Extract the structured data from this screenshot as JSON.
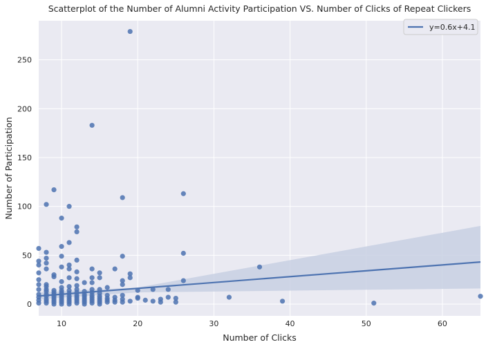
{
  "chart_data": {
    "type": "scatter",
    "title": "Scatterplot of the Number of Alumni Activity Participation VS. Number of Clicks of Repeat Clickers",
    "xlabel": "Number of Clicks",
    "ylabel": "Number of Participation",
    "xlim": [
      7,
      65
    ],
    "ylim": [
      -12,
      290
    ],
    "xticks": [
      10,
      20,
      30,
      40,
      50,
      60
    ],
    "yticks": [
      0,
      50,
      100,
      150,
      200,
      250
    ],
    "grid": true,
    "legend_position": "top-right",
    "colors": {
      "background": "#EAEAF2",
      "grid": "#FFFFFF",
      "points": "#4C72B0",
      "line": "#4C72B0",
      "band": "#C8D0E3"
    },
    "regression": {
      "label": "y=0.6x+4.1",
      "slope": 0.6,
      "intercept": 4.1,
      "ci_lower": [
        [
          7,
          5
        ],
        [
          20,
          12
        ],
        [
          65,
          16
        ]
      ],
      "ci_upper": [
        [
          7,
          12
        ],
        [
          20,
          17
        ],
        [
          65,
          80
        ]
      ]
    },
    "points": [
      {
        "x": 7,
        "y": 57
      },
      {
        "x": 7,
        "y": 44
      },
      {
        "x": 7,
        "y": 40
      },
      {
        "x": 7,
        "y": 32
      },
      {
        "x": 7,
        "y": 25
      },
      {
        "x": 7,
        "y": 20
      },
      {
        "x": 7,
        "y": 15
      },
      {
        "x": 7,
        "y": 10
      },
      {
        "x": 7,
        "y": 7
      },
      {
        "x": 7,
        "y": 4
      },
      {
        "x": 7,
        "y": 1
      },
      {
        "x": 8,
        "y": 102
      },
      {
        "x": 8,
        "y": 53
      },
      {
        "x": 8,
        "y": 47
      },
      {
        "x": 8,
        "y": 42
      },
      {
        "x": 8,
        "y": 36
      },
      {
        "x": 8,
        "y": 20
      },
      {
        "x": 8,
        "y": 18
      },
      {
        "x": 8,
        "y": 15
      },
      {
        "x": 8,
        "y": 13
      },
      {
        "x": 8,
        "y": 10
      },
      {
        "x": 8,
        "y": 8
      },
      {
        "x": 8,
        "y": 5
      },
      {
        "x": 8,
        "y": 3
      },
      {
        "x": 8,
        "y": 1
      },
      {
        "x": 9,
        "y": 117
      },
      {
        "x": 9,
        "y": 30
      },
      {
        "x": 9,
        "y": 28
      },
      {
        "x": 9,
        "y": 14
      },
      {
        "x": 9,
        "y": 12
      },
      {
        "x": 9,
        "y": 10
      },
      {
        "x": 9,
        "y": 8
      },
      {
        "x": 9,
        "y": 6
      },
      {
        "x": 9,
        "y": 4
      },
      {
        "x": 9,
        "y": 2
      },
      {
        "x": 9,
        "y": 0
      },
      {
        "x": 10,
        "y": 88
      },
      {
        "x": 10,
        "y": 59
      },
      {
        "x": 10,
        "y": 49
      },
      {
        "x": 10,
        "y": 38
      },
      {
        "x": 10,
        "y": 23
      },
      {
        "x": 10,
        "y": 17
      },
      {
        "x": 10,
        "y": 14
      },
      {
        "x": 10,
        "y": 12
      },
      {
        "x": 10,
        "y": 10
      },
      {
        "x": 10,
        "y": 8
      },
      {
        "x": 10,
        "y": 6
      },
      {
        "x": 10,
        "y": 4
      },
      {
        "x": 10,
        "y": 2
      },
      {
        "x": 10,
        "y": 0
      },
      {
        "x": 11,
        "y": 100
      },
      {
        "x": 11,
        "y": 63
      },
      {
        "x": 11,
        "y": 40
      },
      {
        "x": 11,
        "y": 36
      },
      {
        "x": 11,
        "y": 27
      },
      {
        "x": 11,
        "y": 18
      },
      {
        "x": 11,
        "y": 14
      },
      {
        "x": 11,
        "y": 11
      },
      {
        "x": 11,
        "y": 8
      },
      {
        "x": 11,
        "y": 6
      },
      {
        "x": 11,
        "y": 4
      },
      {
        "x": 11,
        "y": 2
      },
      {
        "x": 11,
        "y": 0
      },
      {
        "x": 12,
        "y": 79
      },
      {
        "x": 12,
        "y": 74
      },
      {
        "x": 12,
        "y": 45
      },
      {
        "x": 12,
        "y": 33
      },
      {
        "x": 12,
        "y": 26
      },
      {
        "x": 12,
        "y": 19
      },
      {
        "x": 12,
        "y": 15
      },
      {
        "x": 12,
        "y": 12
      },
      {
        "x": 12,
        "y": 9
      },
      {
        "x": 12,
        "y": 7
      },
      {
        "x": 12,
        "y": 5
      },
      {
        "x": 12,
        "y": 3
      },
      {
        "x": 12,
        "y": 1
      },
      {
        "x": 13,
        "y": 22
      },
      {
        "x": 13,
        "y": 13
      },
      {
        "x": 13,
        "y": 10
      },
      {
        "x": 13,
        "y": 8
      },
      {
        "x": 13,
        "y": 6
      },
      {
        "x": 13,
        "y": 4
      },
      {
        "x": 13,
        "y": 2
      },
      {
        "x": 13,
        "y": 0
      },
      {
        "x": 14,
        "y": 183
      },
      {
        "x": 14,
        "y": 36
      },
      {
        "x": 14,
        "y": 27
      },
      {
        "x": 14,
        "y": 22
      },
      {
        "x": 14,
        "y": 15
      },
      {
        "x": 14,
        "y": 12
      },
      {
        "x": 14,
        "y": 9
      },
      {
        "x": 14,
        "y": 7
      },
      {
        "x": 14,
        "y": 5
      },
      {
        "x": 14,
        "y": 3
      },
      {
        "x": 14,
        "y": 1
      },
      {
        "x": 15,
        "y": 32
      },
      {
        "x": 15,
        "y": 27
      },
      {
        "x": 15,
        "y": 15
      },
      {
        "x": 15,
        "y": 11
      },
      {
        "x": 15,
        "y": 8
      },
      {
        "x": 15,
        "y": 6
      },
      {
        "x": 15,
        "y": 4
      },
      {
        "x": 15,
        "y": 2
      },
      {
        "x": 15,
        "y": 0
      },
      {
        "x": 16,
        "y": 17
      },
      {
        "x": 16,
        "y": 9
      },
      {
        "x": 16,
        "y": 6
      },
      {
        "x": 16,
        "y": 4
      },
      {
        "x": 16,
        "y": 2
      },
      {
        "x": 17,
        "y": 36
      },
      {
        "x": 17,
        "y": 7
      },
      {
        "x": 17,
        "y": 4
      },
      {
        "x": 17,
        "y": 2
      },
      {
        "x": 18,
        "y": 109
      },
      {
        "x": 18,
        "y": 49
      },
      {
        "x": 18,
        "y": 24
      },
      {
        "x": 18,
        "y": 20
      },
      {
        "x": 18,
        "y": 9
      },
      {
        "x": 18,
        "y": 5
      },
      {
        "x": 18,
        "y": 2
      },
      {
        "x": 19,
        "y": 279
      },
      {
        "x": 19,
        "y": 31
      },
      {
        "x": 19,
        "y": 27
      },
      {
        "x": 19,
        "y": 3
      },
      {
        "x": 20,
        "y": 14
      },
      {
        "x": 20,
        "y": 7
      },
      {
        "x": 20,
        "y": 6
      },
      {
        "x": 21,
        "y": 4
      },
      {
        "x": 22,
        "y": 15
      },
      {
        "x": 22,
        "y": 3
      },
      {
        "x": 23,
        "y": 5
      },
      {
        "x": 23,
        "y": 2
      },
      {
        "x": 24,
        "y": 15
      },
      {
        "x": 24,
        "y": 7
      },
      {
        "x": 25,
        "y": 6
      },
      {
        "x": 25,
        "y": 2
      },
      {
        "x": 26,
        "y": 113
      },
      {
        "x": 26,
        "y": 52
      },
      {
        "x": 26,
        "y": 24
      },
      {
        "x": 32,
        "y": 7
      },
      {
        "x": 36,
        "y": 38
      },
      {
        "x": 39,
        "y": 3
      },
      {
        "x": 51,
        "y": 1
      },
      {
        "x": 65,
        "y": 8
      }
    ]
  }
}
